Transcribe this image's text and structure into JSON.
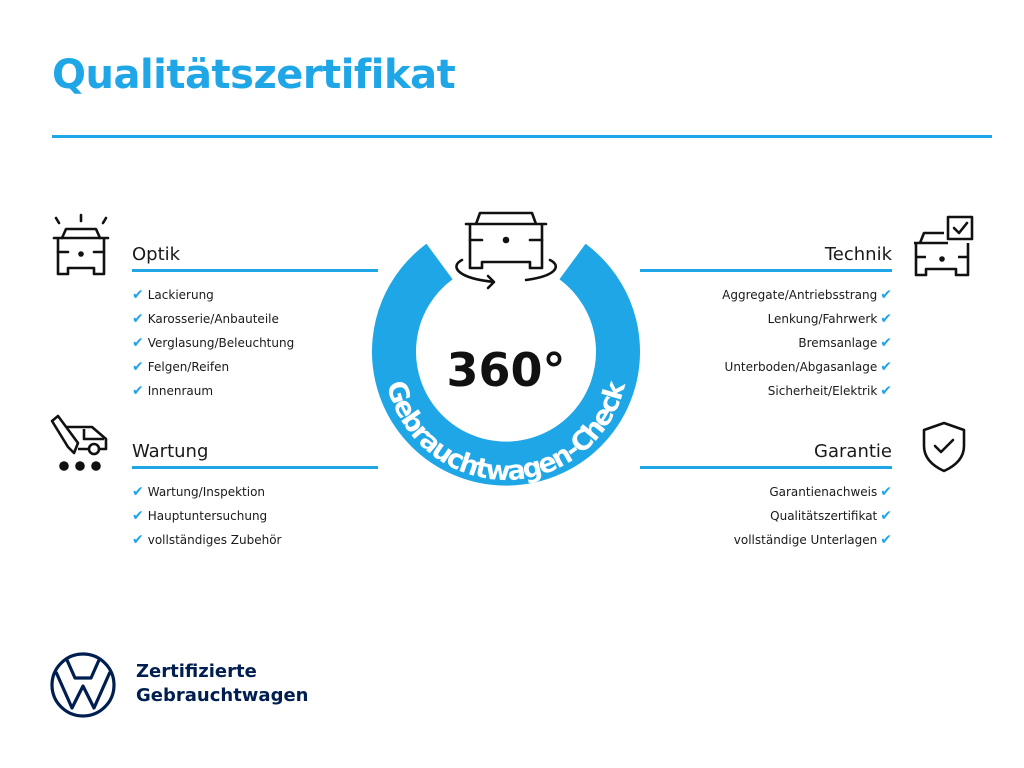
{
  "title": "Qualitätszertifikat",
  "colors": {
    "accent": "#1ea6e6",
    "brand_navy": "#001e50",
    "text": "#1a1a1a"
  },
  "center": {
    "degrees": "360°",
    "arc_text": "Gebrauchtwagen-Check",
    "icon": "car-rotate-icon"
  },
  "sections": {
    "optik": {
      "heading": "Optik",
      "icon": "car-lights-icon",
      "items": [
        "Lackierung",
        "Karosserie/Anbauteile",
        "Verglasung/Beleuchtung",
        "Felgen/Reifen",
        "Innenraum"
      ]
    },
    "wartung": {
      "heading": "Wartung",
      "icon": "service-truck-icon",
      "items": [
        "Wartung/Inspektion",
        "Hauptuntersuchung",
        "vollständiges Zubehör"
      ]
    },
    "technik": {
      "heading": "Technik",
      "icon": "car-checkbox-icon",
      "items": [
        "Aggregate/Antriebsstrang",
        "Lenkung/Fahrwerk",
        "Bremsanlage",
        "Unterboden/Abgasanlage",
        "Sicherheit/Elektrik"
      ]
    },
    "garantie": {
      "heading": "Garantie",
      "icon": "shield-check-icon",
      "items": [
        "Garantienachweis",
        "Qualitätszertifikat",
        "vollständige Unterlagen"
      ]
    }
  },
  "check_mark": "✔",
  "footer": {
    "line1": "Zertifizierte",
    "line2": "Gebrauchtwagen",
    "logo": "vw-logo"
  }
}
